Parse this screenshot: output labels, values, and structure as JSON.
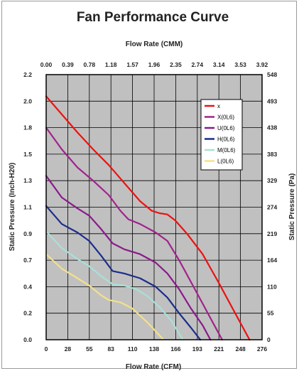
{
  "chart_data": {
    "type": "line",
    "title": "Fan Performance Curve",
    "top_xlabel": "Flow Rate (CMM)",
    "top_x_ticks": [
      "0.00",
      "0.39",
      "0.78",
      "1.18",
      "1.57",
      "1.96",
      "2.35",
      "2.74",
      "3.14",
      "3.53",
      "3.92"
    ],
    "xlabel": "Flow Rate (CFM)",
    "x_ticks": [
      "0",
      "28",
      "55",
      "83",
      "110",
      "138",
      "166",
      "193",
      "221",
      "248",
      "276"
    ],
    "xlim": [
      0,
      276
    ],
    "ylabel": "Static Pressure (Inch-H20)",
    "y_ticks": [
      "0.0",
      "0.2",
      "0.4",
      "0.7",
      "0.9",
      "1.1",
      "1.3",
      "1.5",
      "1.8",
      "2.0",
      "2.2"
    ],
    "ylim": [
      0,
      2.2
    ],
    "right_ylabel": "Static Pressure (Pa)",
    "right_y_ticks": [
      "0",
      "55",
      "110",
      "164",
      "219",
      "274",
      "329",
      "383",
      "438",
      "493",
      "548"
    ],
    "grid": true,
    "legend_position": "top-right",
    "series": [
      {
        "name": "x",
        "color": "#ee1111",
        "points": [
          [
            0,
            2.02
          ],
          [
            20,
            1.87
          ],
          [
            40,
            1.72
          ],
          [
            60,
            1.58
          ],
          [
            80,
            1.45
          ],
          [
            100,
            1.3
          ],
          [
            120,
            1.15
          ],
          [
            135,
            1.07
          ],
          [
            145,
            1.05
          ],
          [
            155,
            1.04
          ],
          [
            165,
            0.99
          ],
          [
            180,
            0.88
          ],
          [
            200,
            0.71
          ],
          [
            220,
            0.48
          ],
          [
            240,
            0.24
          ],
          [
            260,
            0.0
          ]
        ]
      },
      {
        "name": "X(0L6)",
        "color": "#a3228c",
        "points": [
          [
            0,
            1.76
          ],
          [
            20,
            1.58
          ],
          [
            40,
            1.43
          ],
          [
            60,
            1.32
          ],
          [
            80,
            1.2
          ],
          [
            95,
            1.07
          ],
          [
            105,
            1.0
          ],
          [
            120,
            0.96
          ],
          [
            140,
            0.89
          ],
          [
            155,
            0.82
          ],
          [
            170,
            0.66
          ],
          [
            185,
            0.48
          ],
          [
            200,
            0.3
          ],
          [
            215,
            0.12
          ],
          [
            225,
            0.0
          ]
        ]
      },
      {
        "name": "U(0L6)",
        "color": "#8b1a8b",
        "points": [
          [
            0,
            1.36
          ],
          [
            20,
            1.18
          ],
          [
            40,
            1.09
          ],
          [
            55,
            1.03
          ],
          [
            70,
            0.92
          ],
          [
            85,
            0.8
          ],
          [
            100,
            0.75
          ],
          [
            120,
            0.71
          ],
          [
            140,
            0.64
          ],
          [
            155,
            0.55
          ],
          [
            170,
            0.42
          ],
          [
            185,
            0.26
          ],
          [
            200,
            0.12
          ],
          [
            210,
            0.0
          ]
        ]
      },
      {
        "name": "H(0L6)",
        "color": "#1c2d8c",
        "points": [
          [
            0,
            1.11
          ],
          [
            20,
            0.96
          ],
          [
            40,
            0.89
          ],
          [
            55,
            0.82
          ],
          [
            70,
            0.7
          ],
          [
            85,
            0.57
          ],
          [
            100,
            0.55
          ],
          [
            120,
            0.51
          ],
          [
            140,
            0.44
          ],
          [
            155,
            0.35
          ],
          [
            170,
            0.22
          ],
          [
            185,
            0.1
          ],
          [
            197,
            0.0
          ]
        ]
      },
      {
        "name": "M(0L6)",
        "color": "#a8e0d8",
        "points": [
          [
            0,
            0.9
          ],
          [
            20,
            0.76
          ],
          [
            40,
            0.67
          ],
          [
            55,
            0.61
          ],
          [
            70,
            0.53
          ],
          [
            85,
            0.46
          ],
          [
            100,
            0.45
          ],
          [
            115,
            0.42
          ],
          [
            130,
            0.36
          ],
          [
            145,
            0.27
          ],
          [
            160,
            0.16
          ],
          [
            170,
            0.05
          ],
          [
            175,
            0.0
          ]
        ]
      },
      {
        "name": "L(0L6)",
        "color": "#f4e08a",
        "points": [
          [
            0,
            0.71
          ],
          [
            20,
            0.59
          ],
          [
            40,
            0.51
          ],
          [
            55,
            0.45
          ],
          [
            70,
            0.37
          ],
          [
            80,
            0.33
          ],
          [
            95,
            0.31
          ],
          [
            110,
            0.26
          ],
          [
            120,
            0.2
          ],
          [
            130,
            0.14
          ],
          [
            140,
            0.07
          ],
          [
            150,
            0.0
          ]
        ]
      }
    ]
  }
}
